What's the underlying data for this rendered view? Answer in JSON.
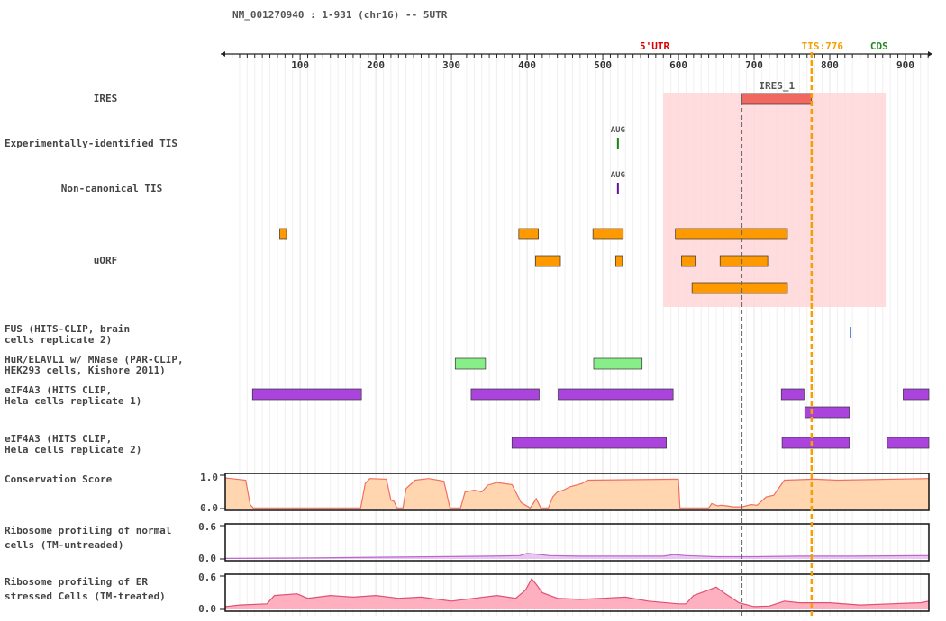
{
  "header": {
    "transcript_label": "NM_001270940 : 1-931 (chr16) -- 5UTR"
  },
  "ruler": {
    "start": 1,
    "end": 931,
    "ticks": [
      100,
      200,
      300,
      400,
      500,
      600,
      700,
      800,
      900
    ],
    "region_label": "5'UTR",
    "tis_label": "TIS:776",
    "tis_position": 776,
    "cds_label": "CDS",
    "colors": {
      "region": "#dd0000",
      "tis": "#f5a000",
      "cds": "#228822"
    }
  },
  "highlight": {
    "start": 580,
    "end": 874,
    "color": "#ffd6d8"
  },
  "guide_position": 684,
  "tracks": {
    "ires": {
      "label": "IRES",
      "features": [
        {
          "name": "IRES_1",
          "start": 684,
          "end": 776,
          "color": "#f06860"
        }
      ]
    },
    "exp_tis": {
      "label": "Experimentally-identified TIS",
      "marks": [
        {
          "label": "AUG",
          "position": 520,
          "color": "#118811"
        }
      ]
    },
    "noncanonical_tis": {
      "label": "Non-canonical TIS",
      "marks": [
        {
          "label": "AUG",
          "position": 520,
          "color": "#661199"
        }
      ]
    },
    "uorf": {
      "label": "uORF",
      "color": "#ff9900",
      "rows": [
        [
          {
            "start": 73,
            "end": 82
          },
          {
            "start": 389,
            "end": 415
          },
          {
            "start": 487,
            "end": 527
          },
          {
            "start": 596,
            "end": 744
          }
        ],
        [
          {
            "start": 411,
            "end": 444
          },
          {
            "start": 517,
            "end": 526
          },
          {
            "start": 604,
            "end": 622
          },
          {
            "start": 655,
            "end": 718
          }
        ],
        [
          {
            "start": 618,
            "end": 744
          }
        ]
      ]
    },
    "fus": {
      "label_lines": [
        "FUS (HITS-CLIP, brain",
        "cells replicate 2)"
      ],
      "marks": [
        {
          "position": 827,
          "color": "#4477cc"
        }
      ]
    },
    "hur": {
      "label_lines": [
        "HuR/ELAVL1 w/ MNase (PAR-CLIP,",
        "HEK293 cells, Kishore 2011)"
      ],
      "color": "#88ee88",
      "features": [
        {
          "start": 305,
          "end": 345
        },
        {
          "start": 488,
          "end": 552
        }
      ]
    },
    "eif4a3_r1": {
      "label_lines": [
        "eIF4A3 (HITS CLIP,",
        "Hela cells replicate 1)"
      ],
      "color": "#aa44dd",
      "rows": [
        [
          {
            "start": 37,
            "end": 181
          },
          {
            "start": 326,
            "end": 416
          },
          {
            "start": 441,
            "end": 593
          },
          {
            "start": 736,
            "end": 766
          },
          {
            "start": 897,
            "end": 931
          }
        ],
        [
          {
            "start": 767,
            "end": 826
          }
        ]
      ]
    },
    "eif4a3_r2": {
      "label_lines": [
        "eIF4A3 (HITS CLIP,",
        "Hela cells replicate 2)"
      ],
      "color": "#aa44dd",
      "features": [
        {
          "start": 380,
          "end": 584
        },
        {
          "start": 737,
          "end": 826
        },
        {
          "start": 876,
          "end": 931
        }
      ]
    },
    "conservation": {
      "label": "Conservation Score",
      "ymax_label": "1.0",
      "ymin_label": "0.0",
      "ylim": [
        0,
        1
      ],
      "fill": "#ffd6b0",
      "stroke": "#f07060",
      "points": [
        [
          1,
          0.92
        ],
        [
          28,
          0.85
        ],
        [
          34,
          0.12
        ],
        [
          38,
          0.02
        ],
        [
          180,
          0.02
        ],
        [
          186,
          0.75
        ],
        [
          192,
          0.9
        ],
        [
          214,
          0.88
        ],
        [
          220,
          0.25
        ],
        [
          224,
          0.22
        ],
        [
          228,
          0.02
        ],
        [
          236,
          0.02
        ],
        [
          240,
          0.6
        ],
        [
          252,
          0.85
        ],
        [
          270,
          0.9
        ],
        [
          290,
          0.82
        ],
        [
          298,
          0.02
        ],
        [
          312,
          0.02
        ],
        [
          318,
          0.5
        ],
        [
          330,
          0.55
        ],
        [
          340,
          0.5
        ],
        [
          348,
          0.7
        ],
        [
          360,
          0.78
        ],
        [
          380,
          0.72
        ],
        [
          392,
          0.18
        ],
        [
          398,
          0.1
        ],
        [
          404,
          0.02
        ],
        [
          408,
          0.15
        ],
        [
          412,
          0.3
        ],
        [
          418,
          0.02
        ],
        [
          428,
          0.02
        ],
        [
          434,
          0.35
        ],
        [
          440,
          0.5
        ],
        [
          448,
          0.55
        ],
        [
          456,
          0.65
        ],
        [
          472,
          0.75
        ],
        [
          480,
          0.85
        ],
        [
          600,
          0.88
        ],
        [
          602,
          0.02
        ],
        [
          640,
          0.02
        ],
        [
          644,
          0.15
        ],
        [
          652,
          0.08
        ],
        [
          656,
          0.1
        ],
        [
          664,
          0.08
        ],
        [
          672,
          0.05
        ],
        [
          684,
          0.05
        ],
        [
          696,
          0.12
        ],
        [
          704,
          0.1
        ],
        [
          716,
          0.35
        ],
        [
          726,
          0.4
        ],
        [
          740,
          0.85
        ],
        [
          780,
          0.88
        ],
        [
          810,
          0.85
        ],
        [
          931,
          0.9
        ]
      ]
    },
    "ribo_normal": {
      "label_lines": [
        "Ribosome profiling of normal",
        "cells (TM-untreaded)"
      ],
      "ymax_label": "0.6",
      "ymin_label": "0.0",
      "ylim": [
        0,
        0.6
      ],
      "fill": "#e8c8f0",
      "stroke": "#bb66cc",
      "points": [
        [
          1,
          0.01
        ],
        [
          60,
          0.015
        ],
        [
          120,
          0.02
        ],
        [
          200,
          0.03
        ],
        [
          280,
          0.04
        ],
        [
          350,
          0.05
        ],
        [
          390,
          0.06
        ],
        [
          400,
          0.1
        ],
        [
          410,
          0.09
        ],
        [
          430,
          0.06
        ],
        [
          470,
          0.05
        ],
        [
          580,
          0.05
        ],
        [
          594,
          0.08
        ],
        [
          610,
          0.06
        ],
        [
          650,
          0.04
        ],
        [
          700,
          0.04
        ],
        [
          760,
          0.05
        ],
        [
          830,
          0.05
        ],
        [
          931,
          0.06
        ]
      ]
    },
    "ribo_er": {
      "label_lines": [
        "Ribosome profiling of ER",
        "stressed Cells (TM-treated)"
      ],
      "ymax_label": "0.6",
      "ymin_label": "0.0",
      "ylim": [
        0,
        0.6
      ],
      "fill": "#ffb0c0",
      "stroke": "#e05070",
      "points": [
        [
          1,
          0.05
        ],
        [
          20,
          0.08
        ],
        [
          56,
          0.1
        ],
        [
          66,
          0.25
        ],
        [
          96,
          0.28
        ],
        [
          110,
          0.2
        ],
        [
          140,
          0.25
        ],
        [
          170,
          0.22
        ],
        [
          200,
          0.25
        ],
        [
          230,
          0.2
        ],
        [
          260,
          0.22
        ],
        [
          300,
          0.15
        ],
        [
          330,
          0.2
        ],
        [
          360,
          0.25
        ],
        [
          385,
          0.2
        ],
        [
          398,
          0.35
        ],
        [
          406,
          0.55
        ],
        [
          412,
          0.45
        ],
        [
          420,
          0.3
        ],
        [
          440,
          0.2
        ],
        [
          470,
          0.18
        ],
        [
          500,
          0.2
        ],
        [
          530,
          0.22
        ],
        [
          560,
          0.15
        ],
        [
          600,
          0.1
        ],
        [
          610,
          0.1
        ],
        [
          620,
          0.25
        ],
        [
          640,
          0.35
        ],
        [
          650,
          0.4
        ],
        [
          660,
          0.3
        ],
        [
          680,
          0.12
        ],
        [
          700,
          0.05
        ],
        [
          720,
          0.06
        ],
        [
          740,
          0.15
        ],
        [
          760,
          0.12
        ],
        [
          800,
          0.12
        ],
        [
          840,
          0.08
        ],
        [
          880,
          0.1
        ],
        [
          920,
          0.12
        ],
        [
          931,
          0.15
        ]
      ]
    }
  }
}
